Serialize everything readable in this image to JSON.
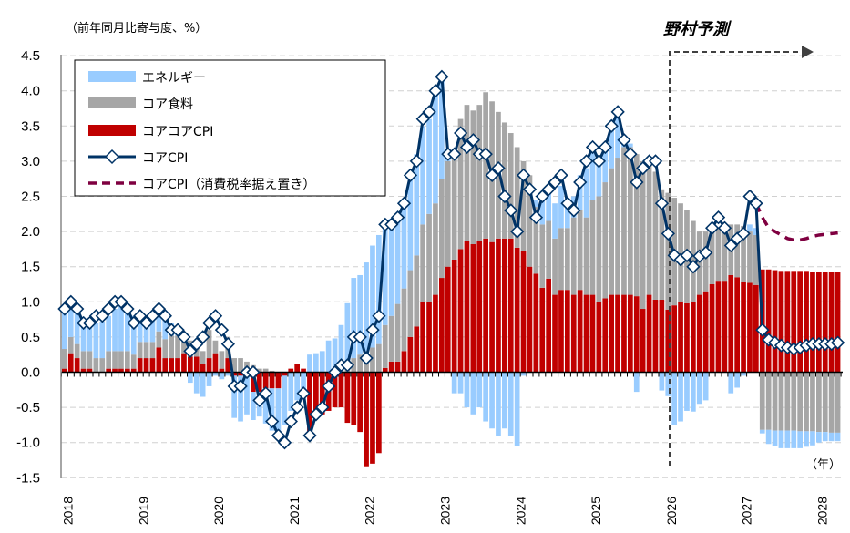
{
  "chart_data": {
    "type": "bar",
    "stacked": true,
    "unit_note": "（前年同月比寄与度、%）",
    "x_unit_label": "（年）",
    "forecast_label": "野村予測",
    "forecast_start": "2026-01",
    "start_month": "2018-01",
    "x_tick_labels": [
      "2018",
      "2019",
      "2020",
      "2021",
      "2022",
      "2023",
      "2024",
      "2025",
      "2026",
      "2027",
      "2028"
    ],
    "y_tick_labels": [
      "4.5",
      "4.0",
      "3.5",
      "3.0",
      "2.5",
      "2.0",
      "1.5",
      "1.0",
      "0.5",
      "0.0",
      "-0.5",
      "-1.0",
      "-1.5"
    ],
    "ylim": [
      -1.5,
      4.5
    ],
    "grid": true,
    "legend_position": "top-left",
    "colors": {
      "energy": "#99ccff",
      "food": "#a6a6a6",
      "corecore": "#c00000",
      "core": "#003366",
      "core_tax": "#7f0040"
    },
    "series": [
      {
        "key": "energy",
        "name": "エネルギー",
        "values": [
          0.57,
          0.45,
          0.45,
          0.45,
          0.4,
          0.5,
          0.52,
          0.5,
          0.6,
          0.65,
          0.6,
          0.55,
          0.37,
          0.29,
          0.37,
          0.27,
          0.33,
          0.18,
          0.1,
          0.03,
          -0.15,
          -0.3,
          -0.35,
          -0.2,
          -0.05,
          -0.1,
          -0.05,
          -0.6,
          -0.65,
          -0.55,
          -0.4,
          -0.35,
          -0.5,
          -0.6,
          -0.7,
          -0.7,
          -0.55,
          -0.4,
          -0.25,
          0.25,
          0.27,
          0.3,
          0.45,
          0.48,
          0.62,
          0.88,
          1.14,
          1.13,
          1.26,
          1.45,
          1.55,
          1.43,
          1.38,
          1.28,
          1.25,
          1.38,
          1.44,
          1.4,
          1.35,
          1.55,
          1.45,
          0.05,
          -0.3,
          -0.3,
          -0.5,
          -0.6,
          -0.5,
          -0.7,
          -0.8,
          -0.9,
          -0.8,
          -0.9,
          -1.05,
          -0.05,
          0.0,
          0.1,
          0.35,
          0.4,
          0.5,
          0.6,
          0.35,
          0.3,
          0.5,
          0.7,
          0.75,
          0.55,
          0.55,
          0.55,
          0.6,
          0.15,
          0.05,
          -0.28,
          0.0,
          0.0,
          0.0,
          -0.26,
          -0.34,
          -0.75,
          -0.7,
          -0.55,
          -0.56,
          -0.45,
          -0.4,
          0.0,
          0.0,
          0.0,
          -0.3,
          -0.22,
          -0.05,
          0.1,
          0.1,
          -0.05,
          -0.2,
          -0.22,
          -0.25,
          -0.25,
          -0.25,
          -0.24,
          -0.22,
          -0.2,
          -0.15,
          -0.13,
          -0.12,
          -0.12
        ]
      },
      {
        "key": "food",
        "name": "コア食料",
        "values": [
          0.28,
          0.23,
          0.2,
          0.25,
          0.25,
          0.2,
          0.2,
          0.25,
          0.25,
          0.25,
          0.25,
          0.2,
          0.23,
          0.23,
          0.23,
          0.23,
          0.27,
          0.32,
          0.32,
          0.25,
          0.23,
          0.13,
          0.18,
          0.4,
          0.18,
          0.25,
          0.3,
          0.2,
          0.2,
          0.15,
          0.1,
          0.05,
          0.05,
          0.02,
          0,
          0,
          0,
          0,
          0,
          0,
          0,
          0,
          0,
          0,
          0.05,
          0.1,
          0.2,
          0.25,
          0.3,
          0.35,
          0.4,
          0.61,
          0.65,
          0.82,
          0.89,
          0.95,
          1.01,
          1.1,
          1.25,
          1.3,
          1.41,
          1.5,
          1.5,
          1.85,
          1.93,
          1.9,
          1.93,
          2.08,
          2.0,
          1.8,
          1.65,
          1.5,
          1.43,
          1.28,
          1.3,
          0.95,
          0.9,
          0.82,
          0.8,
          0.88,
          0.88,
          1.1,
          1.13,
          1.1,
          1.35,
          1.5,
          1.65,
          1.8,
          1.95,
          2.1,
          2.1,
          2.02,
          2.1,
          1.85,
          1.82,
          1.57,
          1.66,
          1.53,
          1.4,
          1.32,
          1.15,
          0.9,
          0.85,
          0.75,
          0.75,
          0.75,
          0.72,
          0.75,
          0.8,
          0.73,
          0.71,
          -0.82,
          -0.82,
          -0.83,
          -0.83,
          -0.83,
          -0.83,
          -0.84,
          -0.84,
          -0.84,
          -0.85,
          -0.85,
          -0.86,
          -0.86
        ]
      },
      {
        "key": "corecore",
        "name": "コアコアCPI",
        "values": [
          0.05,
          0.27,
          0.2,
          0.05,
          0.05,
          0,
          0,
          0.05,
          0.05,
          0.05,
          0.05,
          0.05,
          0.2,
          0.2,
          0.2,
          0.35,
          0.2,
          0.2,
          0.2,
          0.27,
          0.22,
          0.22,
          0.12,
          0.2,
          0.27,
          0.05,
          0.2,
          -0.05,
          -0.05,
          -0.05,
          -0.28,
          -0.28,
          -0.23,
          -0.23,
          -0.23,
          -0.05,
          0.05,
          0.12,
          0.05,
          -0.85,
          -0.65,
          -0.6,
          -0.55,
          -0.5,
          -0.5,
          -0.72,
          -0.75,
          -0.85,
          -1.35,
          -1.3,
          -1.15,
          0.06,
          0.15,
          0.15,
          0.3,
          0.5,
          0.65,
          1.0,
          1.0,
          1.1,
          1.34,
          1.5,
          1.6,
          1.75,
          1.87,
          1.82,
          1.87,
          1.9,
          1.85,
          1.9,
          1.9,
          1.9,
          1.77,
          1.72,
          1.5,
          1.4,
          1.2,
          1.33,
          1.1,
          1.17,
          1.17,
          1.1,
          1.17,
          1.1,
          1.1,
          1.0,
          1.05,
          1.1,
          1.1,
          1.1,
          1.1,
          1.08,
          0.9,
          1.1,
          1.03,
          1.03,
          0.89,
          0.95,
          1.0,
          0.98,
          1.0,
          1.1,
          1.15,
          1.25,
          1.3,
          1.3,
          1.38,
          1.35,
          1.28,
          1.27,
          1.24,
          1.46,
          1.46,
          1.45,
          1.44,
          1.44,
          1.44,
          1.44,
          1.44,
          1.43,
          1.43,
          1.43,
          1.42,
          1.42
        ]
      },
      {
        "key": "core",
        "name": "コアCPI",
        "type": "line",
        "values": [
          0.9,
          1.0,
          0.9,
          0.7,
          0.7,
          0.8,
          0.8,
          0.9,
          1.0,
          1.0,
          0.9,
          0.7,
          0.8,
          0.7,
          0.8,
          0.9,
          0.8,
          0.6,
          0.6,
          0.5,
          0.3,
          0.4,
          0.5,
          0.7,
          0.8,
          0.6,
          0.4,
          -0.2,
          -0.2,
          0.0,
          0.0,
          -0.4,
          -0.3,
          -0.7,
          -0.9,
          -1.0,
          -0.7,
          -0.5,
          -0.3,
          -0.9,
          -0.6,
          -0.5,
          -0.2,
          0.0,
          0.1,
          0.1,
          0.5,
          0.5,
          0.2,
          0.6,
          0.8,
          2.1,
          2.1,
          2.2,
          2.4,
          2.8,
          3.0,
          3.6,
          3.7,
          4.0,
          4.2,
          3.1,
          3.1,
          3.4,
          3.2,
          3.3,
          3.1,
          3.1,
          2.8,
          2.9,
          2.5,
          2.3,
          2.0,
          2.8,
          2.6,
          2.2,
          2.5,
          2.6,
          2.7,
          2.8,
          2.4,
          2.3,
          2.7,
          3.0,
          3.2,
          3.0,
          3.2,
          3.5,
          3.7,
          3.3,
          3.1,
          2.7,
          2.9,
          3.0,
          3.0,
          2.4,
          1.97,
          1.66,
          1.6,
          1.66,
          1.5,
          1.65,
          1.7,
          2.05,
          2.2,
          2.05,
          1.8,
          1.9,
          1.97,
          2.5,
          2.4,
          0.6,
          0.46,
          0.42,
          0.38,
          0.35,
          0.33,
          0.35,
          0.38,
          0.4,
          0.4,
          0.4,
          0.4,
          0.42
        ]
      },
      {
        "key": "core_tax",
        "name": "コアCPI（消費税率据え置き）",
        "type": "line",
        "start_month": "2027-03",
        "values": [
          2.4,
          2.2,
          2.05,
          2.0,
          1.95,
          1.9,
          1.88,
          1.88,
          1.9,
          1.93,
          1.95,
          1.96,
          1.97,
          1.98
        ]
      }
    ]
  }
}
